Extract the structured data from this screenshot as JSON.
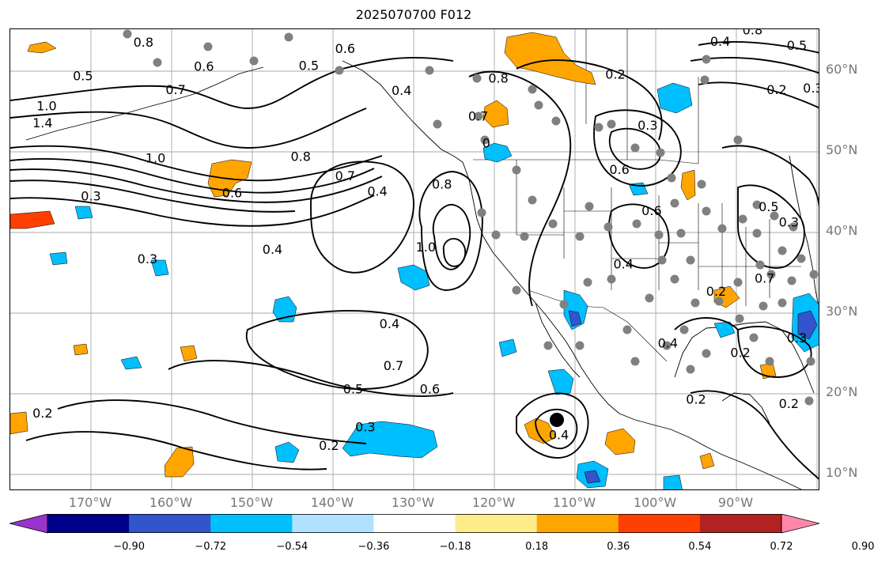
{
  "title": "2025070700 F012",
  "lat_labels": [
    {
      "label": "60°N",
      "lat": 60
    },
    {
      "label": "50°N",
      "lat": 50
    },
    {
      "label": "40°N",
      "lat": 40
    },
    {
      "label": "30°N",
      "lat": 30
    },
    {
      "label": "20°N",
      "lat": 20
    },
    {
      "label": "10°N",
      "lat": 10
    }
  ],
  "lon_labels": [
    {
      "label": "170°W",
      "lon": -170
    },
    {
      "label": "160°W",
      "lon": -160
    },
    {
      "label": "150°W",
      "lon": -150
    },
    {
      "label": "140°W",
      "lon": -140
    },
    {
      "label": "130°W",
      "lon": -130
    },
    {
      "label": "120°W",
      "lon": -120
    },
    {
      "label": "110°W",
      "lon": -110
    },
    {
      "label": "100°W",
      "lon": -100
    },
    {
      "label": "90°W",
      "lon": -90
    }
  ],
  "colorbar": {
    "ticks": [
      "−0.90",
      "−0.72",
      "−0.54",
      "−0.36",
      "−0.18",
      "0.18",
      "0.36",
      "0.54",
      "0.72",
      "0.90"
    ],
    "colors": [
      "#9933cc",
      "#00008b",
      "#3355cc",
      "#00bfff",
      "#b0e2ff",
      "#ffffff",
      "#ffec8b",
      "#ffa500",
      "#ff4000",
      "#b22222",
      "#ff88aa"
    ]
  },
  "contour_labels": [
    {
      "text": "0.6",
      "lon": -138.5,
      "lat": 62.7
    },
    {
      "text": "0.5",
      "lon": -171,
      "lat": 59.3
    },
    {
      "text": "0.8",
      "lon": -163.5,
      "lat": 63.5
    },
    {
      "text": "0.6",
      "lon": -156,
      "lat": 60.5
    },
    {
      "text": "0.7",
      "lon": -159.5,
      "lat": 57.6
    },
    {
      "text": "0.5",
      "lon": -143,
      "lat": 60.6
    },
    {
      "text": "0.4",
      "lon": -131.5,
      "lat": 57.5
    },
    {
      "text": "1.0",
      "lon": -175.5,
      "lat": 55.6
    },
    {
      "text": "1.4",
      "lon": -176,
      "lat": 53.5
    },
    {
      "text": "1.0",
      "lon": -162,
      "lat": 49.1
    },
    {
      "text": "0.8",
      "lon": -144,
      "lat": 49.3
    },
    {
      "text": "0.7",
      "lon": -138.5,
      "lat": 46.9
    },
    {
      "text": "0.4",
      "lon": -134.5,
      "lat": 45.0
    },
    {
      "text": "0.3",
      "lon": -170,
      "lat": 44.4
    },
    {
      "text": "0.6",
      "lon": -152.5,
      "lat": 44.8
    },
    {
      "text": "0.4",
      "lon": -147.5,
      "lat": 37.8
    },
    {
      "text": "0.3",
      "lon": -163,
      "lat": 36.6
    },
    {
      "text": "0.8",
      "lon": -126.5,
      "lat": 45.9
    },
    {
      "text": "1.0",
      "lon": -128.5,
      "lat": 38.1
    },
    {
      "text": "0.4",
      "lon": -133,
      "lat": 28.6
    },
    {
      "text": "0.7",
      "lon": -132.5,
      "lat": 23.4
    },
    {
      "text": "0.5",
      "lon": -137.5,
      "lat": 20.5
    },
    {
      "text": "0.6",
      "lon": -128,
      "lat": 20.5
    },
    {
      "text": "0.3",
      "lon": -136,
      "lat": 15.8
    },
    {
      "text": "0.2",
      "lon": -140.5,
      "lat": 13.5
    },
    {
      "text": "0.2",
      "lon": -176,
      "lat": 17.5
    },
    {
      "text": "0.4",
      "lon": -112,
      "lat": 14.8
    },
    {
      "text": "0.8",
      "lon": -119.5,
      "lat": 59.0
    },
    {
      "text": "0.7",
      "lon": -122,
      "lat": 54.3
    },
    {
      "text": "0",
      "lon": -121,
      "lat": 51.0
    },
    {
      "text": "0.2",
      "lon": -105,
      "lat": 59.5
    },
    {
      "text": "0.3",
      "lon": -101,
      "lat": 53.2
    },
    {
      "text": "0.6",
      "lon": -104.5,
      "lat": 47.7
    },
    {
      "text": "0.6",
      "lon": -100.5,
      "lat": 42.6
    },
    {
      "text": "0.4",
      "lon": -104,
      "lat": 36.0
    },
    {
      "text": "0.4",
      "lon": -92,
      "lat": 63.6
    },
    {
      "text": "0.8",
      "lon": -88,
      "lat": 65.0
    },
    {
      "text": "0.5",
      "lon": -82.5,
      "lat": 63.1
    },
    {
      "text": "0.2",
      "lon": -85,
      "lat": 57.6
    },
    {
      "text": "0.3",
      "lon": -80.5,
      "lat": 57.8
    },
    {
      "text": "0.5",
      "lon": -86,
      "lat": 43.1
    },
    {
      "text": "0.3",
      "lon": -83.5,
      "lat": 41.2
    },
    {
      "text": "0.7",
      "lon": -86.5,
      "lat": 34.2
    },
    {
      "text": "0.2",
      "lon": -92.5,
      "lat": 32.6
    },
    {
      "text": "0.4",
      "lon": -98.5,
      "lat": 26.2
    },
    {
      "text": "0.2",
      "lon": -89.5,
      "lat": 25.0
    },
    {
      "text": "0.3",
      "lon": -82.5,
      "lat": 26.8
    },
    {
      "text": "0.2",
      "lon": -95,
      "lat": 19.2
    },
    {
      "text": "0.2",
      "lon": -83.5,
      "lat": 18.7
    }
  ]
}
